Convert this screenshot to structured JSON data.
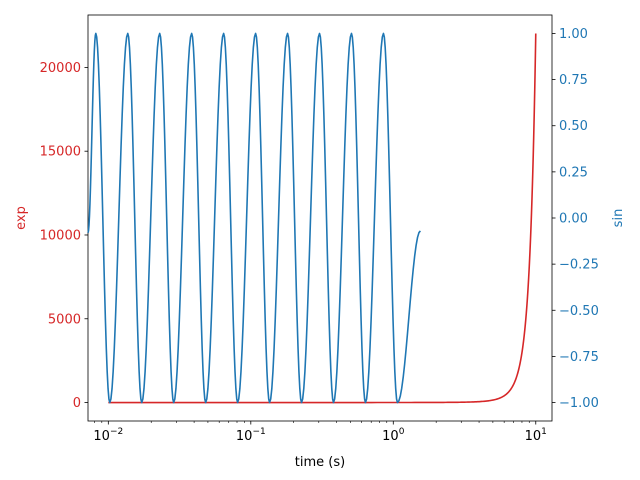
{
  "chart_data": {
    "type": "line",
    "title": "",
    "xlabel": "time (s)",
    "xscale": "log",
    "xlim": [
      0.0072,
      13
    ],
    "xticks": [
      {
        "value": 0.01,
        "base": "10",
        "exp": "−2"
      },
      {
        "value": 0.1,
        "base": "10",
        "exp": "−1"
      },
      {
        "value": 1,
        "base": "10",
        "exp": "0"
      },
      {
        "value": 10,
        "base": "10",
        "exp": "1"
      }
    ],
    "y_left": {
      "label": "exp",
      "color": "#d62728",
      "lim": [
        -1101,
        23128
      ],
      "ticks": [
        {
          "value": 0,
          "label": "0"
        },
        {
          "value": 5000,
          "label": "5000"
        },
        {
          "value": 10000,
          "label": "10000"
        },
        {
          "value": 15000,
          "label": "15000"
        },
        {
          "value": 20000,
          "label": "20000"
        }
      ]
    },
    "y_right": {
      "label": "sin",
      "color": "#1f77b4",
      "lim": [
        -1.1,
        1.1
      ],
      "ticks": [
        {
          "value": 1.0,
          "label": "1.00"
        },
        {
          "value": 0.75,
          "label": "0.75"
        },
        {
          "value": 0.5,
          "label": "0.50"
        },
        {
          "value": 0.25,
          "label": "0.25"
        },
        {
          "value": 0.0,
          "label": "0.00"
        },
        {
          "value": -0.25,
          "label": "−0.25"
        },
        {
          "value": -0.5,
          "label": "−0.50"
        },
        {
          "value": -0.75,
          "label": "−0.75"
        },
        {
          "value": -1.0,
          "label": "−1.00"
        }
      ]
    },
    "series": [
      {
        "axis": "left",
        "color": "#d62728",
        "x": [
          0.01,
          0.1,
          1,
          2,
          3,
          4,
          5,
          5.5,
          6,
          6.5,
          7,
          7.5,
          8,
          8.5,
          9,
          9.25,
          9.5,
          9.75,
          10
        ],
        "y": [
          1,
          1.1,
          2.7,
          7.4,
          20.1,
          54.6,
          148.4,
          244.7,
          403.4,
          665.1,
          1096.6,
          1808.0,
          2981.0,
          4914.8,
          8103.1,
          10404.6,
          13359.7,
          17154.2,
          22026.5
        ]
      },
      {
        "axis": "right",
        "color": "#1f77b4",
        "x": [
          0.0072,
          0.00817,
          0.01024,
          0.01369,
          0.01716,
          0.02294,
          0.02876,
          0.03845,
          0.04821,
          0.06445,
          0.08081,
          0.10804,
          0.13545,
          0.1811,
          0.22705,
          0.30356,
          0.38058,
          0.50883,
          0.63795,
          0.85293,
          1.06939,
          1.55
        ],
        "y": [
          -0.08,
          1,
          -1,
          1,
          -1,
          1,
          -1,
          1,
          -1,
          1,
          -1,
          1,
          -1,
          1,
          -1,
          1,
          -1,
          1,
          -1,
          1,
          -1,
          -0.07
        ]
      }
    ],
    "grid": false,
    "legend": "none"
  }
}
